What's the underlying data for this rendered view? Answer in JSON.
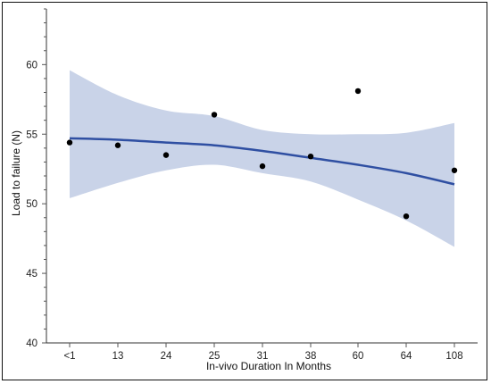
{
  "chart_data": {
    "type": "scatter",
    "xlabel": "In-vivo Duration In Months",
    "ylabel": "Load to failure (N)",
    "categories": [
      "<1",
      "13",
      "24",
      "25",
      "31",
      "38",
      "60",
      "64",
      "108"
    ],
    "ylim": [
      40,
      64
    ],
    "y_ticks": [
      40,
      45,
      50,
      55,
      60
    ],
    "grid": false,
    "points": [
      {
        "x": "<1",
        "y": 54.4
      },
      {
        "x": "13",
        "y": 54.2
      },
      {
        "x": "24",
        "y": 53.5
      },
      {
        "x": "25",
        "y": 56.4
      },
      {
        "x": "31",
        "y": 52.7
      },
      {
        "x": "38",
        "y": 53.4
      },
      {
        "x": "60",
        "y": 58.1
      },
      {
        "x": "64",
        "y": 49.1
      },
      {
        "x": "108",
        "y": 52.4
      }
    ],
    "fit_line": {
      "type": "quadratic",
      "values": [
        54.7,
        54.6,
        54.4,
        54.2,
        53.8,
        53.3,
        52.8,
        52.2,
        51.4
      ]
    },
    "confidence_band": {
      "upper": [
        59.6,
        57.8,
        56.7,
        56.3,
        55.3,
        55.0,
        55.0,
        55.1,
        55.8
      ],
      "lower": [
        50.4,
        51.5,
        52.4,
        52.8,
        52.2,
        51.6,
        50.3,
        48.8,
        46.9
      ]
    },
    "colors": {
      "line": "#2f4fa2",
      "band": "#c9d3e8",
      "points": "#000000"
    }
  }
}
